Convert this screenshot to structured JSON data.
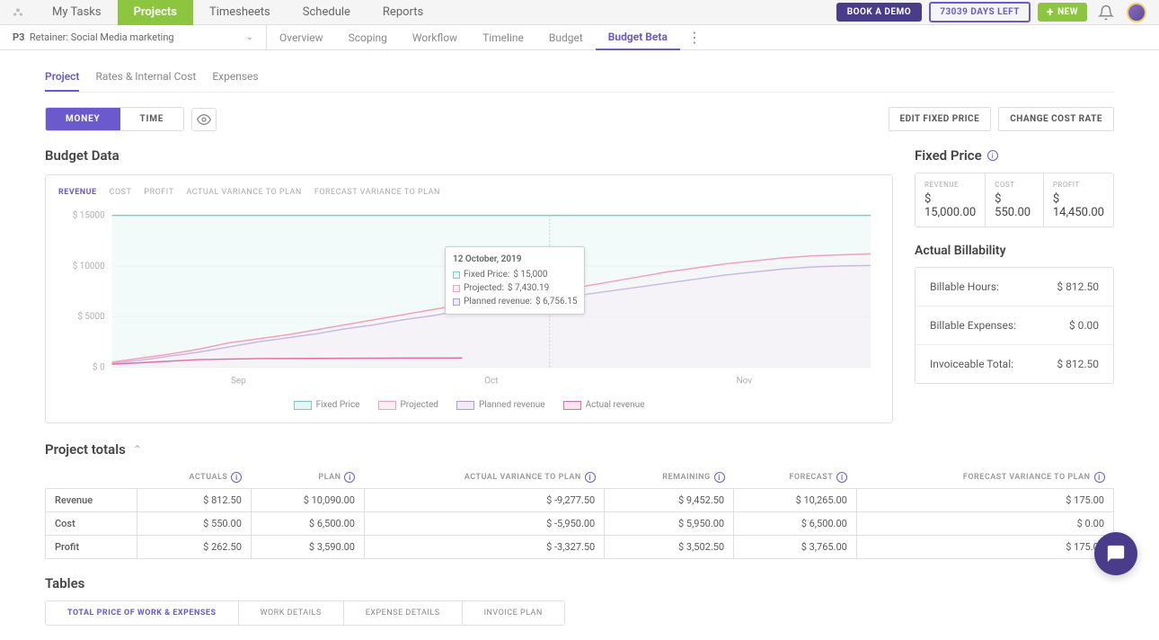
{
  "topnav": {
    "items": [
      "My Tasks",
      "Projects",
      "Timesheets",
      "Schedule",
      "Reports"
    ],
    "active_index": 1,
    "demo": "BOOK A DEMO",
    "days": "73039 DAYS LEFT",
    "new": "NEW"
  },
  "subnav": {
    "project_code": "P3",
    "project_name": "Retainer: Social Media marketing",
    "items": [
      "Overview",
      "Scoping",
      "Workflow",
      "Timeline",
      "Budget",
      "Budget Beta"
    ],
    "active_index": 5
  },
  "tabs": {
    "items": [
      "Project",
      "Rates & Internal Cost",
      "Expenses"
    ],
    "active_index": 0
  },
  "toggle": {
    "items": [
      "MONEY",
      "TIME"
    ],
    "active_index": 0
  },
  "actions": {
    "edit": "EDIT FIXED PRICE",
    "change": "CHANGE COST RATE"
  },
  "budget": {
    "title": "Budget Data",
    "chart_tabs": [
      "REVENUE",
      "COST",
      "PROFIT",
      "ACTUAL VARIANCE TO PLAN",
      "FORECAST VARIANCE TO PLAN"
    ],
    "y_ticks": [
      "$ 15000",
      "$ 10000",
      "$ 5000",
      "$ 0"
    ],
    "x_ticks": [
      "Sep",
      "Oct",
      "Nov"
    ],
    "ylim": [
      0,
      15000
    ],
    "tooltip": {
      "date": "12 October, 2019",
      "fixed_label": "Fixed Price:",
      "fixed_val": "$ 15,000",
      "proj_label": "Projected:",
      "proj_val": "$ 7,430.19",
      "plan_label": "Planned revenue:",
      "plan_val": "$ 6,756.15"
    },
    "legend": [
      "Fixed Price",
      "Projected",
      "Planned revenue",
      "Actual revenue"
    ],
    "colors": {
      "fixed": "#7fc9c9",
      "projected": "#f5a0b8",
      "planned": "#b19cd9",
      "actual": "#e86ca0",
      "grid": "#eeeeee",
      "axis_text": "#b0b0b0"
    },
    "series": {
      "fixed": 15000,
      "projected": [
        500,
        900,
        1300,
        1800,
        2400,
        2800,
        3200,
        3700,
        4200,
        4700,
        5200,
        5700,
        6200,
        6700,
        7200,
        7430,
        7900,
        8400,
        8900,
        9400,
        9800,
        10200,
        10500,
        10800,
        11000,
        11100,
        11200
      ],
      "planned": [
        400,
        700,
        1100,
        1500,
        2000,
        2500,
        2900,
        3300,
        3800,
        4200,
        4700,
        5100,
        5600,
        6000,
        6400,
        6756,
        7100,
        7500,
        7900,
        8300,
        8700,
        9100,
        9400,
        9700,
        9900,
        10000,
        10050
      ],
      "actual": [
        300,
        450,
        600,
        750,
        800,
        850,
        860,
        870,
        880,
        890,
        900,
        905,
        910
      ]
    }
  },
  "fixed_price": {
    "title": "Fixed Price",
    "revenue_label": "REVENUE",
    "revenue_val": "$ 15,000.00",
    "cost_label": "COST",
    "cost_val": "$ 550.00",
    "profit_label": "PROFIT",
    "profit_val": "$ 14,450.00"
  },
  "billability": {
    "title": "Actual Billability",
    "rows": [
      {
        "label": "Billable Hours:",
        "val": "$ 812.50"
      },
      {
        "label": "Billable Expenses:",
        "val": "$ 0.00"
      },
      {
        "label": "Invoiceable Total:",
        "val": "$ 812.50"
      }
    ]
  },
  "totals": {
    "title": "Project totals",
    "columns": [
      "",
      "ACTUALS",
      "PLAN",
      "ACTUAL VARIANCE TO PLAN",
      "REMAINING",
      "FORECAST",
      "FORECAST VARIANCE TO PLAN"
    ],
    "rows": [
      [
        "Revenue",
        "$ 812.50",
        "$ 10,090.00",
        "$ -9,277.50",
        "$ 9,452.50",
        "$ 10,265.00",
        "$ 175.00"
      ],
      [
        "Cost",
        "$ 550.00",
        "$ 6,500.00",
        "$ -5,950.00",
        "$ 5,950.00",
        "$ 6,500.00",
        "$ 0.00"
      ],
      [
        "Profit",
        "$ 262.50",
        "$ 3,590.00",
        "$ -3,327.50",
        "$ 3,502.50",
        "$ 3,765.00",
        "$ 175.00"
      ]
    ]
  },
  "tables": {
    "title": "Tables",
    "tabs": [
      "TOTAL PRICE OF WORK & EXPENSES",
      "WORK DETAILS",
      "EXPENSE DETAILS",
      "INVOICE PLAN"
    ],
    "active_index": 0
  }
}
